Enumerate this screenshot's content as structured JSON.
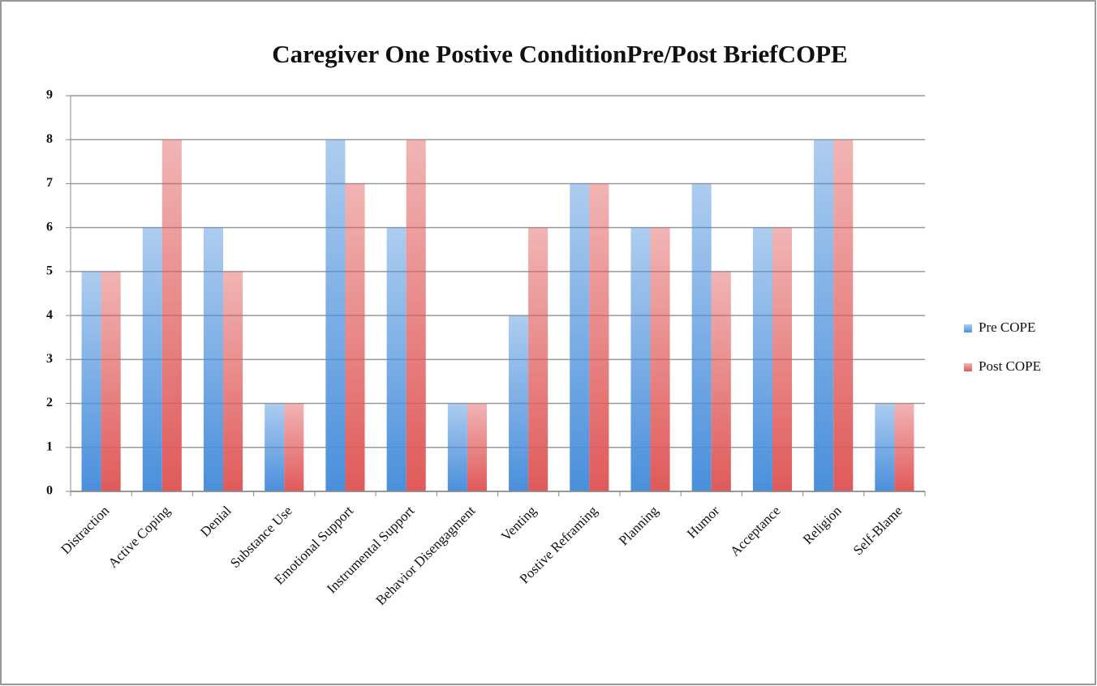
{
  "chart_data": {
    "type": "bar",
    "title": "Caregiver One Postive ConditionPre/Post BriefCOPE",
    "categories": [
      "Distraction",
      "Active Coping",
      "Denial",
      "Substance Use",
      "Emotional Support",
      "Instrumental Support",
      "Behavior Disengagment",
      "Venting",
      "Postive Reframing",
      "Planning",
      "Humor",
      "Acceptance",
      "Religion",
      "Self-Blame"
    ],
    "series": [
      {
        "name": "Pre COPE",
        "color": "#4a8fdc",
        "values": [
          5,
          6,
          6,
          2,
          8,
          6,
          2,
          4,
          7,
          6,
          7,
          6,
          8,
          2
        ]
      },
      {
        "name": "Post COPE",
        "color": "#e05a5a",
        "values": [
          5,
          8,
          5,
          2,
          7,
          8,
          2,
          6,
          7,
          6,
          5,
          6,
          8,
          2
        ]
      }
    ],
    "ylim": [
      0,
      9
    ],
    "yticks": [
      0,
      1,
      2,
      3,
      4,
      5,
      6,
      7,
      8,
      9
    ],
    "grid": true,
    "legend": "right"
  }
}
